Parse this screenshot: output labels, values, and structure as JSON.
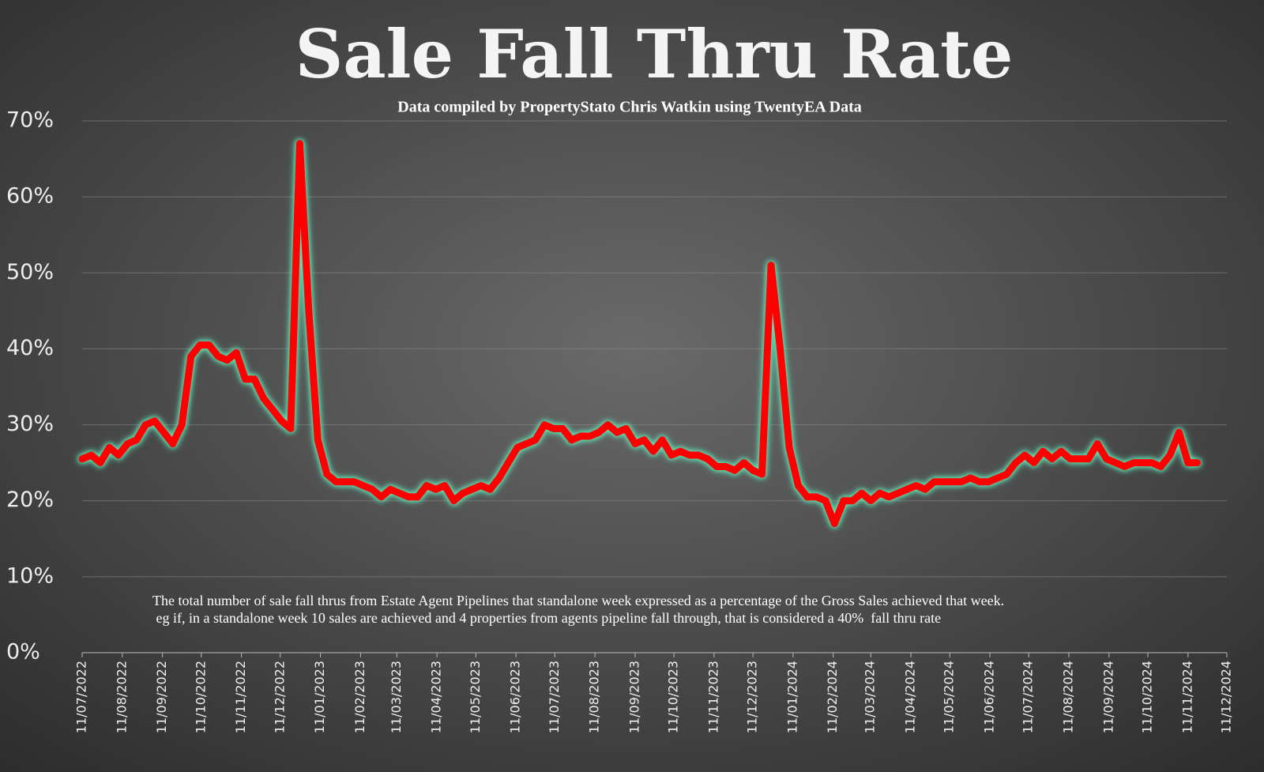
{
  "chart_data": {
    "type": "line",
    "title": "Sale Fall Thru Rate",
    "subtitle": "Data compiled by PropertyStato Chris Watkin using TwentyEA Data",
    "annotations": [
      "The total number of sale fall thrus from Estate Agent Pipelines that standalone week expressed as a percentage of the Gross Sales achieved that week.",
      " eg if, in a standalone week 10 sales are achieved and 4 properties from agents pipeline fall through, that is considered a 40%  fall thru rate"
    ],
    "x": [
      "2022-07-11",
      "2022-07-18",
      "2022-07-25",
      "2022-08-01",
      "2022-08-08",
      "2022-08-15",
      "2022-08-22",
      "2022-08-29",
      "2022-09-05",
      "2022-09-12",
      "2022-09-19",
      "2022-09-26",
      "2022-10-03",
      "2022-10-10",
      "2022-10-17",
      "2022-10-24",
      "2022-10-31",
      "2022-11-07",
      "2022-11-14",
      "2022-11-21",
      "2022-11-28",
      "2022-12-05",
      "2022-12-12",
      "2022-12-19",
      "2022-12-26",
      "2023-01-02",
      "2023-01-09",
      "2023-01-16",
      "2023-01-23",
      "2023-01-30",
      "2023-02-06",
      "2023-02-13",
      "2023-02-20",
      "2023-02-27",
      "2023-03-06",
      "2023-03-13",
      "2023-03-20",
      "2023-03-27",
      "2023-04-03",
      "2023-04-10",
      "2023-04-17",
      "2023-04-24",
      "2023-05-01",
      "2023-05-08",
      "2023-05-15",
      "2023-05-22",
      "2023-05-29",
      "2023-06-05",
      "2023-06-12",
      "2023-06-19",
      "2023-06-26",
      "2023-07-03",
      "2023-07-10",
      "2023-07-17",
      "2023-07-24",
      "2023-07-31",
      "2023-08-07",
      "2023-08-14",
      "2023-08-21",
      "2023-08-28",
      "2023-09-04",
      "2023-09-11",
      "2023-09-18",
      "2023-09-25",
      "2023-10-02",
      "2023-10-09",
      "2023-10-16",
      "2023-10-23",
      "2023-10-30",
      "2023-11-06",
      "2023-11-13",
      "2023-11-20",
      "2023-11-27",
      "2023-12-04",
      "2023-12-11",
      "2023-12-18",
      "2023-12-25",
      "2024-01-01",
      "2024-01-08",
      "2024-01-15",
      "2024-01-22",
      "2024-01-29",
      "2024-02-05",
      "2024-02-12",
      "2024-02-19",
      "2024-02-26",
      "2024-03-04",
      "2024-03-11",
      "2024-03-18",
      "2024-03-25",
      "2024-04-01",
      "2024-04-08",
      "2024-04-15",
      "2024-04-22",
      "2024-04-29",
      "2024-05-06",
      "2024-05-13",
      "2024-05-20",
      "2024-05-27",
      "2024-06-03",
      "2024-06-10",
      "2024-06-17",
      "2024-06-24",
      "2024-07-01",
      "2024-07-08",
      "2024-07-15",
      "2024-07-22",
      "2024-07-29",
      "2024-08-05",
      "2024-08-12",
      "2024-08-19",
      "2024-08-26",
      "2024-09-02",
      "2024-09-09",
      "2024-09-16",
      "2024-09-23",
      "2024-09-30",
      "2024-10-07",
      "2024-10-14",
      "2024-10-21",
      "2024-10-28",
      "2024-11-04",
      "2024-11-11",
      "2024-11-18"
    ],
    "series": [
      {
        "color": "#ff0000",
        "glow": "#5fe3b4",
        "values": [
          25.5,
          26,
          25,
          27,
          26,
          27.5,
          28,
          30,
          30.5,
          29,
          27.5,
          30,
          39,
          40.5,
          40.5,
          39,
          38.5,
          39.5,
          36,
          36,
          33.5,
          32,
          30.5,
          29.5,
          67,
          45,
          28,
          23.5,
          22.5,
          22.5,
          22.5,
          22,
          21.5,
          20.5,
          21.5,
          21,
          20.5,
          20.5,
          22,
          21.5,
          22,
          20,
          21,
          21.5,
          22,
          21.5,
          23,
          25,
          27,
          27.5,
          28,
          30,
          29.5,
          29.5,
          28,
          28.5,
          28.5,
          29,
          30,
          29,
          29.5,
          27.5,
          28,
          26.5,
          28,
          26,
          26.5,
          26,
          26,
          25.5,
          24.5,
          24.5,
          24,
          25,
          24,
          23.5,
          51,
          40,
          27,
          22,
          20.5,
          20.5,
          20,
          17,
          20,
          20,
          21,
          20,
          21,
          20.5,
          21,
          21.5,
          22,
          21.5,
          22.5,
          22.5,
          22.5,
          22.5,
          23,
          22.5,
          22.5,
          23,
          23.5,
          25,
          26,
          25,
          26.5,
          25.5,
          26.5,
          25.5,
          25.5,
          25.5,
          27.5,
          25.5,
          25,
          24.5,
          25,
          25,
          25,
          24.5,
          26,
          29,
          25,
          25
        ]
      }
    ],
    "xlim": [
      "2022-07-11",
      "2024-12-11"
    ],
    "xticks": [
      {
        "value": "2022-07-11",
        "label": "11/07/2022"
      },
      {
        "value": "2022-08-11",
        "label": "11/08/2022"
      },
      {
        "value": "2022-09-11",
        "label": "11/09/2022"
      },
      {
        "value": "2022-10-11",
        "label": "11/10/2022"
      },
      {
        "value": "2022-11-11",
        "label": "11/11/2022"
      },
      {
        "value": "2022-12-11",
        "label": "11/12/2022"
      },
      {
        "value": "2023-01-11",
        "label": "11/01/2023"
      },
      {
        "value": "2023-02-11",
        "label": "11/02/2023"
      },
      {
        "value": "2023-03-11",
        "label": "11/03/2023"
      },
      {
        "value": "2023-04-11",
        "label": "11/04/2023"
      },
      {
        "value": "2023-05-11",
        "label": "11/05/2023"
      },
      {
        "value": "2023-06-11",
        "label": "11/06/2023"
      },
      {
        "value": "2023-07-11",
        "label": "11/07/2023"
      },
      {
        "value": "2023-08-11",
        "label": "11/08/2023"
      },
      {
        "value": "2023-09-11",
        "label": "11/09/2023"
      },
      {
        "value": "2023-10-11",
        "label": "11/10/2023"
      },
      {
        "value": "2023-11-11",
        "label": "11/11/2023"
      },
      {
        "value": "2023-12-11",
        "label": "11/12/2023"
      },
      {
        "value": "2024-01-11",
        "label": "11/01/2024"
      },
      {
        "value": "2024-02-11",
        "label": "11/02/2024"
      },
      {
        "value": "2024-03-11",
        "label": "11/03/2024"
      },
      {
        "value": "2024-04-11",
        "label": "11/04/2024"
      },
      {
        "value": "2024-05-11",
        "label": "11/05/2024"
      },
      {
        "value": "2024-06-11",
        "label": "11/06/2024"
      },
      {
        "value": "2024-07-11",
        "label": "11/07/2024"
      },
      {
        "value": "2024-08-11",
        "label": "11/08/2024"
      },
      {
        "value": "2024-09-11",
        "label": "11/09/2024"
      },
      {
        "value": "2024-10-11",
        "label": "11/10/2024"
      },
      {
        "value": "2024-11-11",
        "label": "11/11/2024"
      },
      {
        "value": "2024-12-11",
        "label": "11/12/2024"
      }
    ],
    "ylim": [
      0,
      70
    ],
    "yticks": [
      {
        "value": 0,
        "label": "0%"
      },
      {
        "value": 10,
        "label": "10%"
      },
      {
        "value": 20,
        "label": "20%"
      },
      {
        "value": 30,
        "label": "30%"
      },
      {
        "value": 40,
        "label": "40%"
      },
      {
        "value": 50,
        "label": "50%"
      },
      {
        "value": 60,
        "label": "60%"
      },
      {
        "value": 70,
        "label": "70%"
      }
    ],
    "grid": true
  }
}
